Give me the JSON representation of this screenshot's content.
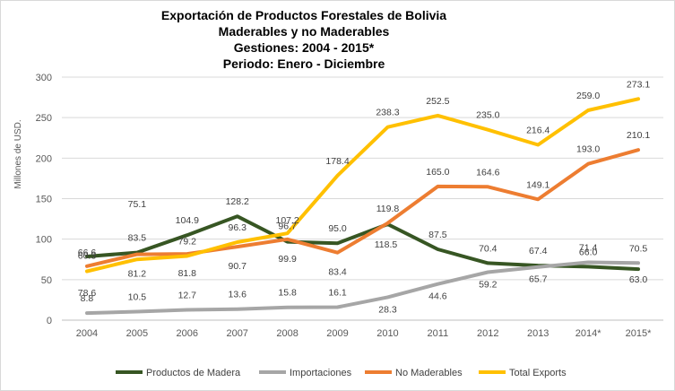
{
  "chart_data": {
    "type": "line",
    "title_lines": [
      "Exportación de Productos Forestales de Bolivia",
      "Maderables y no Maderables",
      "Gestiones: 2004 - 2015*",
      "Periodo: Enero - Diciembre"
    ],
    "ylabel": "Millones de USD.",
    "xlabel": "",
    "ylim": [
      0,
      300
    ],
    "yticks": [
      "0",
      "50",
      "100",
      "150",
      "200",
      "250",
      "300"
    ],
    "categories": [
      "2004",
      "2005",
      "2006",
      "2007",
      "2008",
      "2009",
      "2010",
      "2011",
      "2012",
      "2013",
      "2014*",
      "2015*"
    ],
    "grid": true,
    "legend_position": "bottom",
    "series": [
      {
        "name": "Productos de Madera",
        "color": "#375623",
        "values": [
          78.6,
          83.5,
          104.9,
          128.2,
          96.7,
          95.0,
          118.5,
          87.5,
          70.4,
          67.4,
          66.0,
          63.0
        ],
        "labels": [
          "78.6",
          "83.5",
          "104.9",
          "128.2",
          "96.7",
          "95.0",
          "118.5",
          "87.5",
          "70.4",
          "67.4",
          "66.0",
          "63.0"
        ]
      },
      {
        "name": "Importaciones",
        "color": "#a6a6a6",
        "values": [
          8.8,
          10.5,
          12.7,
          13.6,
          15.8,
          16.1,
          28.3,
          44.6,
          59.2,
          65.7,
          71.4,
          70.5
        ],
        "labels": [
          "8.8",
          "10.5",
          "12.7",
          "13.6",
          "15.8",
          "16.1",
          "28.3",
          "44.6",
          "59.2",
          "65.7",
          "71.4",
          "70.5"
        ]
      },
      {
        "name": "No Maderables",
        "color": "#ed7d31",
        "values": [
          66.6,
          81.2,
          81.8,
          90.7,
          99.9,
          83.4,
          119.8,
          165.0,
          164.6,
          149.1,
          193.0,
          210.1
        ],
        "labels": [
          "66.6",
          "81.2",
          "81.8",
          "90.7",
          "99.9",
          "83.4",
          "119.8",
          "165.0",
          "164.6",
          "149.1",
          "193.0",
          "210.1"
        ]
      },
      {
        "name": "Total Exports",
        "color": "#ffc000",
        "values": [
          60.3,
          75.1,
          79.2,
          96.3,
          107.2,
          178.4,
          238.3,
          252.5,
          235.0,
          216.4,
          259.0,
          273.1
        ],
        "labels": [
          "60.3",
          "75.1",
          "79.2",
          "96.3",
          "107.2",
          "178.4",
          "238.3",
          "252.5",
          "235.0",
          "216.4",
          "259.0",
          "273.1"
        ]
      }
    ]
  }
}
